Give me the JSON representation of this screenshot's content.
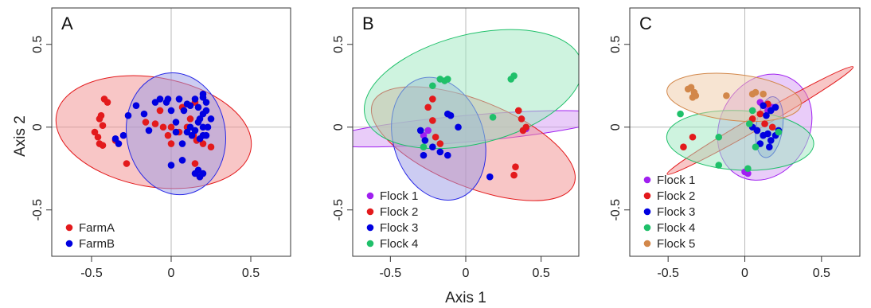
{
  "figure": {
    "xlabel": "Axis 1",
    "ylabel": "Axis 2"
  },
  "chart_data": [
    {
      "type": "scatter",
      "panel": "A",
      "xlim": [
        -0.75,
        0.75
      ],
      "ylim": [
        -0.78,
        0.72
      ],
      "xticks": [
        -0.5,
        0,
        0.5
      ],
      "yticks": [
        -0.5,
        0,
        0.5
      ],
      "xtick_labels": [
        "-0.5",
        "0",
        "0.5"
      ],
      "ytick_labels": [
        "-0.5",
        "0",
        "0.5"
      ],
      "legend_position": "bottom-left",
      "series": [
        {
          "name": "FarmA",
          "color": "#e31a1c",
          "points": [
            [
              -0.42,
              0.17
            ],
            [
              -0.4,
              0.15
            ],
            [
              -0.44,
              0.07
            ],
            [
              -0.45,
              0.05
            ],
            [
              -0.43,
              0.01
            ],
            [
              -0.48,
              -0.03
            ],
            [
              -0.45,
              -0.1
            ],
            [
              -0.43,
              -0.11
            ],
            [
              -0.46,
              -0.06
            ],
            [
              -0.35,
              -0.08
            ],
            [
              -0.28,
              -0.22
            ],
            [
              -0.16,
              0.03
            ],
            [
              -0.1,
              0.02
            ],
            [
              -0.05,
              0.0
            ],
            [
              0.0,
              0.0
            ],
            [
              -0.07,
              0.1
            ],
            [
              -0.02,
              -0.05
            ],
            [
              0.0,
              -0.1
            ],
            [
              0.05,
              -0.03
            ],
            [
              0.07,
              0.12
            ],
            [
              0.1,
              0.0
            ],
            [
              0.12,
              0.05
            ],
            [
              0.15,
              0.15
            ],
            [
              0.14,
              -0.05
            ],
            [
              0.15,
              -0.22
            ],
            [
              0.18,
              -0.3
            ],
            [
              0.2,
              -0.1
            ],
            [
              0.16,
              -0.08
            ],
            [
              0.25,
              -0.12
            ]
          ]
        },
        {
          "name": "FarmB",
          "color": "#0000e0",
          "points": [
            [
              -0.35,
              -0.07
            ],
            [
              -0.33,
              -0.1
            ],
            [
              -0.27,
              0.07
            ],
            [
              -0.3,
              -0.05
            ],
            [
              -0.22,
              0.13
            ],
            [
              -0.17,
              0.08
            ],
            [
              -0.14,
              -0.02
            ],
            [
              -0.1,
              0.15
            ],
            [
              -0.07,
              0.17
            ],
            [
              -0.03,
              0.15
            ],
            [
              0.0,
              0.1
            ],
            [
              0.03,
              0.03
            ],
            [
              0.05,
              0.17
            ],
            [
              0.08,
              0.1
            ],
            [
              0.07,
              -0.1
            ],
            [
              0.1,
              0.14
            ],
            [
              0.12,
              0.13
            ],
            [
              0.15,
              0.17
            ],
            [
              0.17,
              0.12
            ],
            [
              0.2,
              0.08
            ],
            [
              0.18,
              0.05
            ],
            [
              0.2,
              0.0
            ],
            [
              0.22,
              0.15
            ],
            [
              0.2,
              0.2
            ],
            [
              0.17,
              0.03
            ],
            [
              0.15,
              -0.02
            ],
            [
              0.22,
              -0.05
            ],
            [
              0.23,
              0.0
            ],
            [
              0.25,
              0.05
            ],
            [
              0.22,
              0.1
            ],
            [
              0.2,
              -0.05
            ],
            [
              0.18,
              -0.07
            ],
            [
              0.13,
              -0.05
            ],
            [
              0.0,
              -0.23
            ],
            [
              0.07,
              -0.2
            ],
            [
              0.03,
              -0.03
            ],
            [
              0.15,
              -0.28
            ],
            [
              0.2,
              -0.28
            ],
            [
              0.18,
              -0.3
            ],
            [
              0.17,
              -0.26
            ],
            [
              -0.02,
              0.17
            ],
            [
              0.2,
              0.18
            ],
            [
              0.12,
              0.0
            ],
            [
              0.1,
              -0.03
            ]
          ]
        }
      ],
      "ellipses": [
        {
          "series": "FarmA",
          "color": "#e31a1c",
          "fill": "#f28e8e",
          "cx": -0.11,
          "cy": -0.03,
          "rx": 0.62,
          "ry": 0.33,
          "angle_deg": -10
        },
        {
          "series": "FarmB",
          "color": "#2828e6",
          "fill": "#9a9ae6",
          "cx": 0.03,
          "cy": -0.04,
          "rx": 0.31,
          "ry": 0.37,
          "angle_deg": 10
        }
      ]
    },
    {
      "type": "scatter",
      "panel": "B",
      "xlim": [
        -0.75,
        0.75
      ],
      "ylim": [
        -0.78,
        0.72
      ],
      "xticks": [
        -0.5,
        0,
        0.5
      ],
      "yticks": [
        -0.5,
        0,
        0.5
      ],
      "xtick_labels": [
        "-0.5",
        "0",
        "0.5"
      ],
      "ytick_labels": [
        "-0.5",
        "0",
        "0.5"
      ],
      "legend_position": "bottom-left",
      "series": [
        {
          "name": "Flock 1",
          "color": "#a020f0",
          "points": [
            [
              0.4,
              -0.01
            ],
            [
              -0.28,
              -0.05
            ],
            [
              -0.25,
              -0.02
            ]
          ]
        },
        {
          "name": "Flock 2",
          "color": "#e31a1c",
          "points": [
            [
              -0.22,
              0.17
            ],
            [
              -0.25,
              0.12
            ],
            [
              -0.22,
              0.04
            ],
            [
              -0.2,
              -0.06
            ],
            [
              -0.17,
              -0.1
            ],
            [
              0.35,
              0.1
            ],
            [
              0.37,
              0.05
            ],
            [
              0.4,
              0.0
            ],
            [
              0.38,
              -0.02
            ],
            [
              0.33,
              -0.24
            ],
            [
              0.32,
              -0.29
            ]
          ]
        },
        {
          "name": "Flock 3",
          "color": "#0000e0",
          "points": [
            [
              -0.3,
              -0.02
            ],
            [
              -0.27,
              -0.08
            ],
            [
              -0.28,
              -0.17
            ],
            [
              -0.22,
              -0.12
            ],
            [
              -0.12,
              0.08
            ],
            [
              -0.1,
              0.07
            ],
            [
              -0.17,
              -0.15
            ],
            [
              -0.12,
              -0.17
            ],
            [
              0.16,
              -0.3
            ],
            [
              -0.05,
              0.0
            ]
          ]
        },
        {
          "name": "Flock 4",
          "color": "#1fc06a",
          "points": [
            [
              -0.22,
              0.25
            ],
            [
              -0.17,
              0.29
            ],
            [
              -0.12,
              0.29
            ],
            [
              0.3,
              0.29
            ],
            [
              0.32,
              0.31
            ],
            [
              0.18,
              0.06
            ],
            [
              -0.28,
              -0.12
            ],
            [
              -0.14,
              0.28
            ]
          ]
        }
      ],
      "ellipses": [
        {
          "series": "Flock 1",
          "color": "#a020f0",
          "fill": "#d49af4",
          "cx": 0.0,
          "cy": -0.01,
          "rx": 0.95,
          "ry": 0.08,
          "angle_deg": 5
        },
        {
          "series": "Flock 2",
          "color": "#e31a1c",
          "fill": "#f28e8e",
          "cx": 0.05,
          "cy": -0.1,
          "rx": 0.72,
          "ry": 0.26,
          "angle_deg": -22
        },
        {
          "series": "Flock 3",
          "color": "#2828e6",
          "fill": "#9a9ae6",
          "cx": -0.18,
          "cy": -0.07,
          "rx": 0.3,
          "ry": 0.38,
          "angle_deg": 18
        },
        {
          "series": "Flock 4",
          "color": "#1fc06a",
          "fill": "#9ee8bf",
          "cx": 0.05,
          "cy": 0.23,
          "rx": 0.74,
          "ry": 0.33,
          "angle_deg": 14
        }
      ]
    },
    {
      "type": "scatter",
      "panel": "C",
      "xlim": [
        -0.75,
        0.75
      ],
      "ylim": [
        -0.78,
        0.72
      ],
      "xticks": [
        -0.5,
        0,
        0.5
      ],
      "yticks": [
        -0.5,
        0,
        0.5
      ],
      "xtick_labels": [
        "-0.5",
        "0",
        "0.5"
      ],
      "ytick_labels": [
        "-0.5",
        "0",
        "0.5"
      ],
      "legend_position": "bottom-left",
      "series": [
        {
          "name": "Flock 1",
          "color": "#a020f0",
          "points": [
            [
              0.1,
              0.15
            ],
            [
              0.15,
              0.1
            ],
            [
              0.0,
              -0.27
            ],
            [
              0.02,
              -0.28
            ],
            [
              0.18,
              0.12
            ]
          ]
        },
        {
          "name": "Flock 2",
          "color": "#e31a1c",
          "points": [
            [
              -0.4,
              -0.12
            ],
            [
              -0.34,
              -0.06
            ],
            [
              0.05,
              0.05
            ],
            [
              0.1,
              0.08
            ],
            [
              0.15,
              0.14
            ],
            [
              0.18,
              0.0
            ],
            [
              0.08,
              -0.02
            ],
            [
              0.13,
              0.02
            ]
          ]
        },
        {
          "name": "Flock 3",
          "color": "#0000e0",
          "points": [
            [
              0.05,
              0.0
            ],
            [
              0.08,
              -0.02
            ],
            [
              0.12,
              -0.05
            ],
            [
              0.15,
              -0.04
            ],
            [
              0.17,
              -0.08
            ],
            [
              0.2,
              -0.05
            ],
            [
              0.22,
              -0.02
            ],
            [
              0.2,
              0.12
            ],
            [
              0.17,
              0.1
            ],
            [
              0.12,
              0.13
            ],
            [
              0.1,
              -0.1
            ],
            [
              0.16,
              -0.12
            ],
            [
              0.14,
              0.07
            ]
          ]
        },
        {
          "name": "Flock 4",
          "color": "#1fc06a",
          "points": [
            [
              -0.42,
              0.08
            ],
            [
              -0.17,
              -0.06
            ],
            [
              -0.17,
              -0.23
            ],
            [
              0.03,
              0.02
            ],
            [
              0.07,
              -0.12
            ],
            [
              0.02,
              -0.25
            ],
            [
              0.05,
              0.1
            ],
            [
              0.22,
              -0.03
            ]
          ]
        },
        {
          "name": "Flock 5",
          "color": "#d2874a",
          "points": [
            [
              -0.37,
              0.23
            ],
            [
              -0.35,
              0.24
            ],
            [
              -0.33,
              0.21
            ],
            [
              -0.32,
              0.19
            ],
            [
              -0.34,
              0.18
            ],
            [
              -0.12,
              0.19
            ],
            [
              0.05,
              0.2
            ],
            [
              0.07,
              0.21
            ],
            [
              0.12,
              0.2
            ]
          ]
        }
      ],
      "ellipses": [
        {
          "series": "Flock 1",
          "color": "#a020f0",
          "fill": "#d49af4",
          "cx": 0.13,
          "cy": 0.0,
          "rx": 0.36,
          "ry": 0.27,
          "angle_deg": 62
        },
        {
          "series": "Flock 2",
          "color": "#e31a1c",
          "fill": "#f28e8e",
          "cx": 0.1,
          "cy": 0.04,
          "rx": 0.7,
          "ry": 0.04,
          "angle_deg": 30
        },
        {
          "series": "Flock 3",
          "color": "#2828e6",
          "fill": "#9a9ae6",
          "cx": 0.16,
          "cy": 0.0,
          "rx": 0.2,
          "ry": 0.08,
          "angle_deg": 82
        },
        {
          "series": "Flock 4",
          "color": "#1fc06a",
          "fill": "#9ee8bf",
          "cx": -0.03,
          "cy": -0.08,
          "rx": 0.48,
          "ry": 0.18,
          "angle_deg": -3
        },
        {
          "series": "Flock 5",
          "color": "#d2874a",
          "fill": "#f0caa6",
          "cx": -0.07,
          "cy": 0.18,
          "rx": 0.44,
          "ry": 0.14,
          "angle_deg": -6
        }
      ]
    }
  ]
}
